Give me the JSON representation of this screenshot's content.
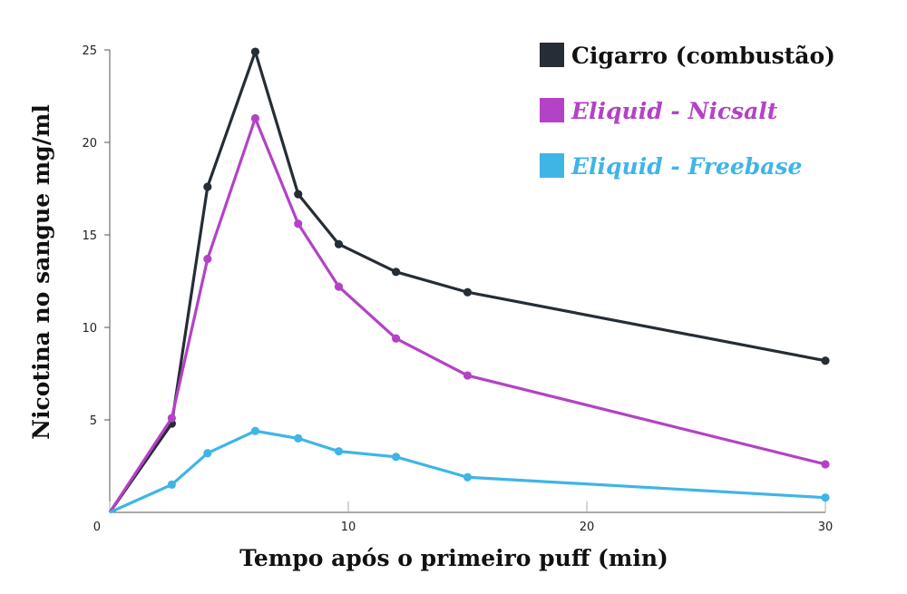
{
  "chart_data": {
    "type": "line",
    "title": "",
    "xlabel": "Tempo após o primeiro puff  (min)",
    "ylabel": "Nicotina no sangue mg/ml",
    "xlim": [
      0,
      30
    ],
    "ylim": [
      0,
      25
    ],
    "x_ticks": [
      "0",
      "10",
      "20",
      "30"
    ],
    "y_ticks": [
      "5",
      "10",
      "15",
      "20",
      "25"
    ],
    "grid": false,
    "legend_position": "top-right",
    "series": [
      {
        "name": "Cigarro (combustão)",
        "color": "#252d35",
        "italic": false,
        "points": [
          [
            0,
            0
          ],
          [
            2.6,
            4.8
          ],
          [
            4.1,
            17.6
          ],
          [
            6.1,
            24.9
          ],
          [
            7.9,
            17.2
          ],
          [
            9.6,
            14.5
          ],
          [
            12,
            13
          ],
          [
            15,
            11.9
          ],
          [
            30,
            8.2
          ]
        ]
      },
      {
        "name": "Eliquid - Nicsalt",
        "color": "#b442c6",
        "italic": true,
        "points": [
          [
            0,
            0
          ],
          [
            2.6,
            5.1
          ],
          [
            4.1,
            13.7
          ],
          [
            6.1,
            21.3
          ],
          [
            7.9,
            15.6
          ],
          [
            9.6,
            12.2
          ],
          [
            12,
            9.4
          ],
          [
            15,
            7.4
          ],
          [
            30,
            2.6
          ]
        ]
      },
      {
        "name": "Eliquid - Freebase",
        "color": "#3fb5e6",
        "italic": true,
        "points": [
          [
            0,
            0
          ],
          [
            2.6,
            1.5
          ],
          [
            4.1,
            3.2
          ],
          [
            6.1,
            4.4
          ],
          [
            7.9,
            4
          ],
          [
            9.6,
            3.3
          ],
          [
            12,
            3
          ],
          [
            15,
            1.9
          ],
          [
            30,
            0.8
          ]
        ]
      }
    ]
  }
}
